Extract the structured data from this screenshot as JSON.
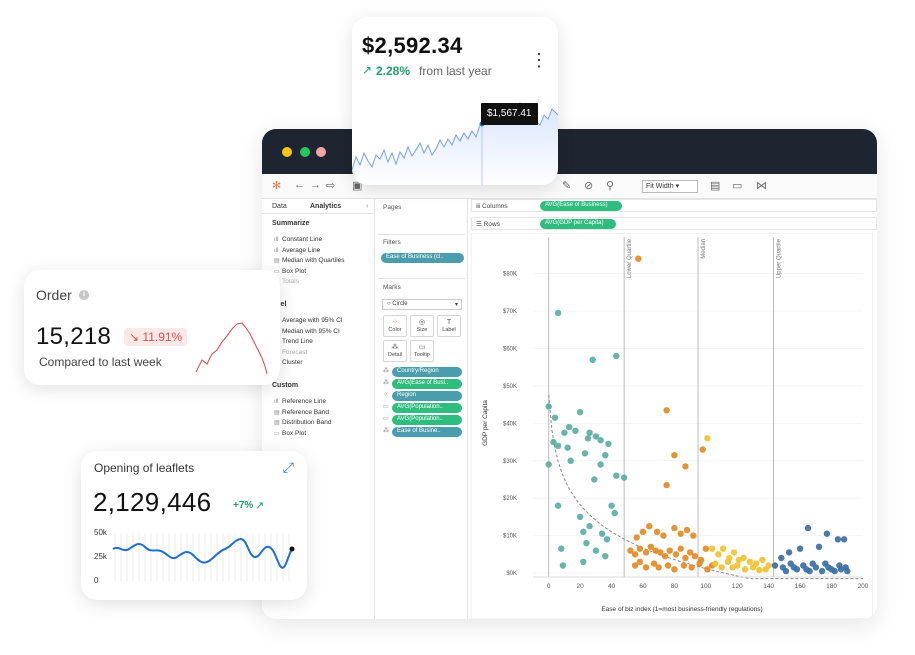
{
  "app": {
    "toolbar": {
      "fit_width": "Fit Width"
    },
    "left_pane": {
      "tabs": [
        "Data",
        "Analytics"
      ],
      "collapse_glyph": "‹",
      "sections": [
        {
          "title": "Summarize",
          "items": [
            "Constant Line",
            "Average Line",
            "Median with Quartiles",
            "Box Plot",
            "Totals"
          ]
        },
        {
          "title": "odel",
          "items": [
            "Average with 95% CI",
            "Median with 95% CI",
            "Trend Line",
            "Forecast",
            "Cluster"
          ]
        },
        {
          "title": "Custom",
          "items": [
            "Reference Line",
            "Reference Band",
            "Distribution Band",
            "Box Plot"
          ]
        }
      ]
    },
    "mid_pane": {
      "pages": "Pages",
      "filters": "Filters",
      "filter_pill": "Ease of Business (cl..",
      "marks": "Marks",
      "mark_type": "Circle",
      "mark_buttons": [
        "Color",
        "Size",
        "Label",
        "Detail",
        "Tooltip"
      ],
      "mark_pills": [
        "Country/Region",
        "AVG(Ease of Busi..",
        "Region",
        "AVG(Population..",
        "AVG(Population..",
        "Ease of Busine.."
      ]
    },
    "shelves": {
      "columns_label": "Columns",
      "columns_pill": "AVG(Ease of Business)",
      "rows_label": "Rows",
      "rows_pill": "AVG(GDP per Capita)"
    }
  },
  "chart_data": {
    "type": "scatter",
    "title": "",
    "xlabel": "Ease of biz index (1=most business-friendly regulations)",
    "ylabel": "GDP per Capita",
    "xlim": [
      -10,
      200
    ],
    "ylim": [
      0,
      85000
    ],
    "x_ticks": [
      0,
      20,
      40,
      60,
      80,
      100,
      120,
      140,
      160,
      180,
      200
    ],
    "y_ticks": [
      {
        "v": 0,
        "label": "$0K"
      },
      {
        "v": 10000,
        "label": "$10K"
      },
      {
        "v": 20000,
        "label": "$20K"
      },
      {
        "v": 30000,
        "label": "$30K"
      },
      {
        "v": 40000,
        "label": "$40K"
      },
      {
        "v": 50000,
        "label": "$50K"
      },
      {
        "v": 60000,
        "label": "$60K"
      },
      {
        "v": 70000,
        "label": "$70K"
      },
      {
        "v": 80000,
        "label": "$80K"
      }
    ],
    "reference_lines": [
      {
        "x": 0,
        "label": ""
      },
      {
        "x": 48,
        "label": "Lower Quartile"
      },
      {
        "x": 95,
        "label": "Median"
      },
      {
        "x": 143,
        "label": "Upper Quartile"
      }
    ],
    "trend": "logarithmic",
    "series": [
      {
        "color": "#5aaea1",
        "points": [
          [
            6,
            69500
          ],
          [
            43,
            58000
          ],
          [
            28,
            57000
          ],
          [
            20,
            43000
          ],
          [
            0,
            44500
          ],
          [
            4,
            41500
          ],
          [
            13,
            39000
          ],
          [
            17,
            38000
          ],
          [
            10,
            37500
          ],
          [
            25,
            36000
          ],
          [
            30,
            36500
          ],
          [
            33,
            35500
          ],
          [
            26,
            37500
          ],
          [
            38,
            34500
          ],
          [
            3,
            35000
          ],
          [
            6,
            34000
          ],
          [
            12,
            33500
          ],
          [
            23,
            32000
          ],
          [
            36,
            31500
          ],
          [
            0,
            29000
          ],
          [
            14,
            30000
          ],
          [
            33,
            29000
          ],
          [
            43,
            26000
          ],
          [
            48,
            25500
          ],
          [
            29,
            25000
          ],
          [
            6,
            18000
          ],
          [
            20,
            15000
          ],
          [
            40,
            18000
          ],
          [
            42,
            16000
          ],
          [
            26,
            12500
          ],
          [
            22,
            11000
          ],
          [
            34,
            10500
          ],
          [
            37,
            9000
          ],
          [
            24,
            8000
          ],
          [
            8,
            6500
          ],
          [
            30,
            6000
          ],
          [
            36,
            4500
          ],
          [
            9,
            2000
          ],
          [
            22,
            3000
          ]
        ]
      },
      {
        "color": "#e38a24",
        "points": [
          [
            57,
            84000
          ],
          [
            75,
            43500
          ],
          [
            80,
            31500
          ],
          [
            75,
            23500
          ],
          [
            87,
            28500
          ],
          [
            98,
            33000
          ],
          [
            56,
            9500
          ],
          [
            60,
            11000
          ],
          [
            64,
            12500
          ],
          [
            69,
            11000
          ],
          [
            73,
            10000
          ],
          [
            80,
            12000
          ],
          [
            84,
            10500
          ],
          [
            88,
            11500
          ],
          [
            92,
            10000
          ],
          [
            52,
            6000
          ],
          [
            55,
            5000
          ],
          [
            58,
            6500
          ],
          [
            62,
            5500
          ],
          [
            65,
            7000
          ],
          [
            68,
            6000
          ],
          [
            71,
            5500
          ],
          [
            74,
            4500
          ],
          [
            77,
            6000
          ],
          [
            81,
            5000
          ],
          [
            84,
            6500
          ],
          [
            87,
            4000
          ],
          [
            90,
            5500
          ],
          [
            93,
            4500
          ],
          [
            97,
            3500
          ],
          [
            100,
            6500
          ],
          [
            55,
            2000
          ],
          [
            58,
            3000
          ],
          [
            62,
            1500
          ],
          [
            67,
            2500
          ],
          [
            70,
            1500
          ],
          [
            76,
            2000
          ],
          [
            80,
            1000
          ],
          [
            86,
            2000
          ],
          [
            91,
            1500
          ],
          [
            96,
            2500
          ],
          [
            101,
            1000
          ],
          [
            104,
            2000
          ]
        ]
      },
      {
        "color": "#f0c231",
        "points": [
          [
            101,
            36000
          ],
          [
            104,
            6500
          ],
          [
            108,
            5000
          ],
          [
            111,
            6500
          ],
          [
            115,
            4000
          ],
          [
            118,
            5500
          ],
          [
            121,
            3500
          ],
          [
            124,
            4000
          ],
          [
            128,
            3000
          ],
          [
            132,
            2500
          ],
          [
            136,
            3500
          ],
          [
            140,
            2000
          ],
          [
            106,
            2500
          ],
          [
            110,
            1500
          ],
          [
            114,
            3000
          ],
          [
            117,
            1500
          ],
          [
            120,
            2000
          ],
          [
            125,
            1000
          ],
          [
            130,
            1500
          ],
          [
            134,
            800
          ],
          [
            138,
            1000
          ]
        ]
      },
      {
        "color": "#3a6fa3",
        "points": [
          [
            165,
            12000
          ],
          [
            177,
            10500
          ],
          [
            184,
            9000
          ],
          [
            188,
            9000
          ],
          [
            172,
            7000
          ],
          [
            160,
            6500
          ],
          [
            153,
            5500
          ],
          [
            148,
            4000
          ],
          [
            144,
            2000
          ],
          [
            149,
            1500
          ],
          [
            154,
            2500
          ],
          [
            158,
            1000
          ],
          [
            162,
            2000
          ],
          [
            166,
            500
          ],
          [
            170,
            1500
          ],
          [
            174,
            500
          ],
          [
            178,
            1500
          ],
          [
            182,
            500
          ],
          [
            186,
            1000
          ],
          [
            190,
            500
          ],
          [
            151,
            500
          ],
          [
            156,
            1500
          ],
          [
            164,
            1000
          ],
          [
            168,
            2500
          ],
          [
            176,
            2500
          ],
          [
            180,
            1000
          ],
          [
            185,
            2000
          ],
          [
            189,
            1500
          ]
        ]
      }
    ]
  },
  "cards": {
    "price": {
      "value": "$2,592.34",
      "change_icon": "↗",
      "change": "2.28%",
      "change_text": "from last year",
      "menu_icon": "⋮",
      "tooltip": "$1,567.41"
    },
    "order": {
      "title": "Order",
      "info_icon": "i",
      "value": "15,218",
      "change_icon": "↘",
      "change": "11.91%",
      "caption": "Compared to last week"
    },
    "leaflets": {
      "title": "Opening of leaflets",
      "expand_icon": "⤢",
      "value": "2,129,446",
      "change": "+7%",
      "change_icon": "↗",
      "y_ticks": [
        "50k",
        "25k",
        "0"
      ]
    }
  },
  "colors": {
    "titlebar": "#1f2530",
    "dot_yellow": "#f5c518",
    "dot_green": "#22c55e",
    "dot_red": "#f4a3a8",
    "positive": "#22a06b",
    "negative": "#d9534f",
    "accent_blue": "#1f6fd1"
  }
}
